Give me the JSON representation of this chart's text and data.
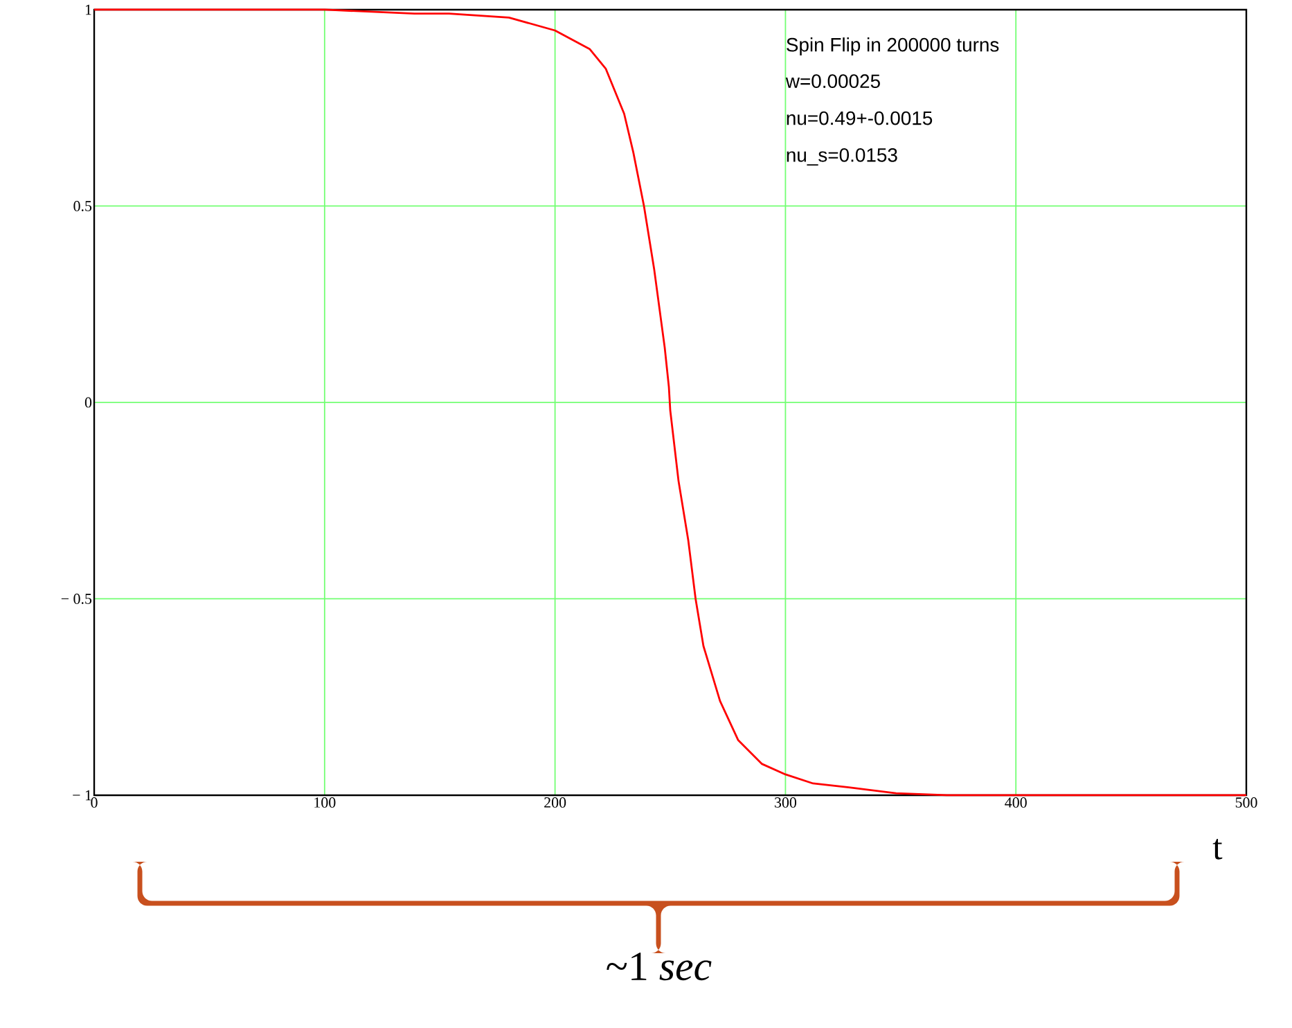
{
  "chart_data": {
    "type": "line",
    "xlabel": "t",
    "annotations": [
      "Spin Flip in 200000 turns",
      "w=0.00025",
      "nu=0.49+-0.0015",
      "nu_s=0.0153",
      "~1 *sec*"
    ],
    "xlim": [
      0,
      500
    ],
    "ylim": [
      -1,
      1
    ],
    "xticks": [
      0,
      100,
      200,
      300,
      400,
      500
    ],
    "yticks": [
      {
        "value": -1,
        "label": "− 1"
      },
      {
        "value": -0.5,
        "label": "− 0.5"
      },
      0,
      0.5,
      1
    ],
    "grid": true,
    "line_style": "solid",
    "marker": "none",
    "series": [
      {
        "color": "#ff0000",
        "x": [
          0,
          100,
          139,
          154,
          180,
          200,
          215,
          222,
          230,
          234,
          238.6,
          243,
          247.6,
          249.4,
          250,
          253.6,
          257.8,
          261,
          264.4,
          271.6,
          279.5,
          289.7,
          300,
          312,
          327.5,
          348,
          370,
          500
        ],
        "values": [
          1,
          1,
          0.99,
          0.99,
          0.98,
          0.947,
          0.9,
          0.85,
          0.735,
          0.636,
          0.5,
          0.34,
          0.14,
          0.04,
          -0.02,
          -0.2,
          -0.35,
          -0.5,
          -0.62,
          -0.76,
          -0.86,
          -0.92,
          -0.947,
          -0.97,
          -0.98,
          -0.995,
          -1,
          -1
        ]
      }
    ]
  }
}
